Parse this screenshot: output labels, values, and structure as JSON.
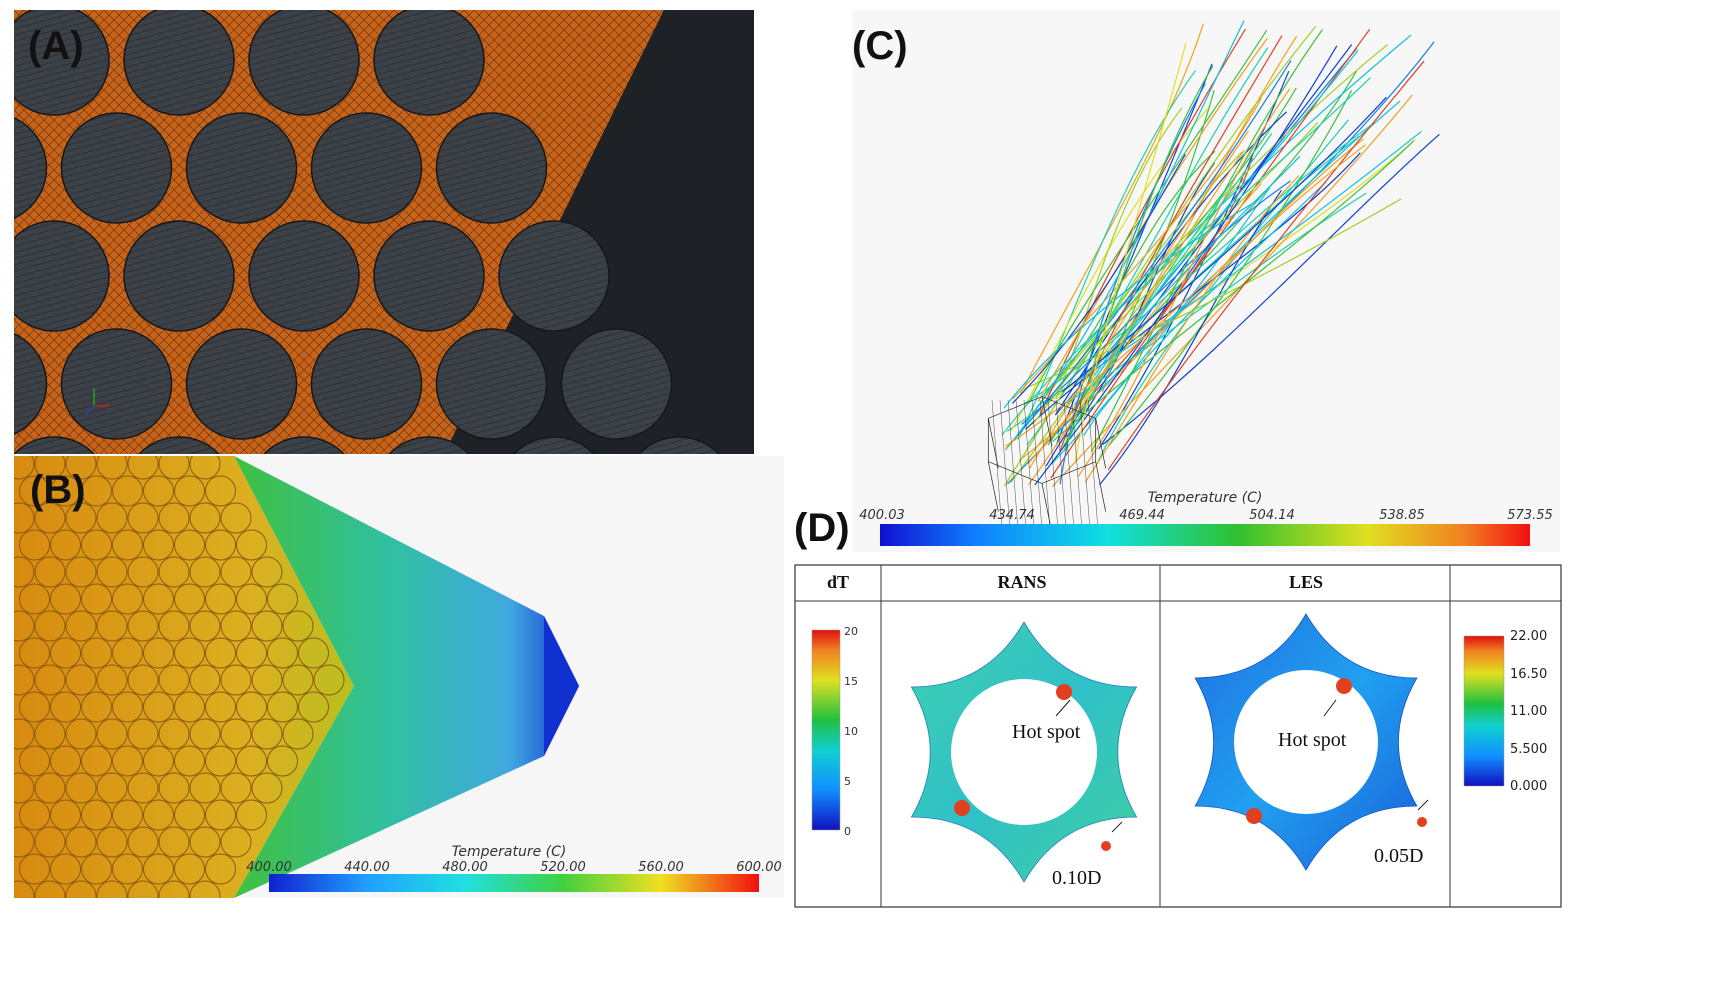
{
  "panels": {
    "a": {
      "letter": "(A)"
    },
    "b": {
      "letter": "(B)",
      "colorbar": {
        "title": "Temperature (C)",
        "ticks": [
          "400.00",
          "440.00",
          "480.00",
          "520.00",
          "560.00",
          "600.00"
        ]
      }
    },
    "c": {
      "letter": "(C)",
      "colorbar": {
        "title": "Temperature (C)",
        "ticks": [
          "400.03",
          "434.74",
          "469.44",
          "504.14",
          "538.85",
          "573.55"
        ]
      }
    },
    "d": {
      "letter": "(D)",
      "headers": {
        "dt": "dT",
        "rans": "RANS",
        "les": "LES"
      },
      "left_scale": [
        "20",
        "15",
        "10",
        "5",
        "0"
      ],
      "right_scale": [
        "22.00",
        "16.50",
        "11.00",
        "5.500",
        "0.000"
      ],
      "rans": {
        "hotspot": "Hot spot",
        "gap": "0.10D"
      },
      "les": {
        "hotspot": "Hot spot",
        "gap": "0.05D"
      }
    }
  },
  "colors": {
    "mesh_orange": "#c8641a",
    "rod_gray": "#3c4148",
    "hot": "#e53020",
    "cold": "#1030d0"
  }
}
